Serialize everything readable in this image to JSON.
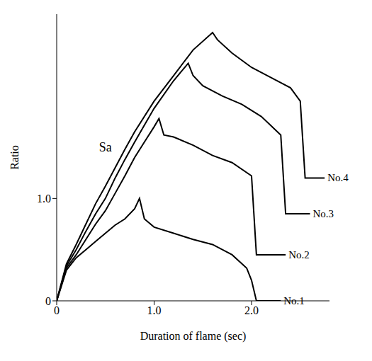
{
  "chart_data": {
    "type": "line",
    "xlabel": "Duration of flame (sec)",
    "ylabel": "Ratio",
    "xlim": [
      0,
      2.8
    ],
    "ylim": [
      0,
      2.8
    ],
    "xticks": [
      0,
      {
        "value": 1,
        "label": "1.0"
      },
      {
        "value": 2,
        "label": "2.0"
      }
    ],
    "yticks": [
      0,
      {
        "value": 1,
        "label": "1.0"
      }
    ],
    "grid": false,
    "annotations": [
      {
        "text": "Sa",
        "x": 0.5,
        "y": 1.5
      }
    ],
    "series": [
      {
        "name": "No.1",
        "color": "#000000",
        "x": [
          0,
          0.1,
          0.2,
          0.3,
          0.4,
          0.5,
          0.6,
          0.7,
          0.8,
          0.85,
          0.9,
          1.0,
          1.2,
          1.4,
          1.6,
          1.8,
          1.95,
          2.0,
          2.05,
          2.3
        ],
        "values": [
          0,
          0.3,
          0.42,
          0.5,
          0.58,
          0.66,
          0.74,
          0.8,
          0.9,
          1.0,
          0.8,
          0.72,
          0.66,
          0.6,
          0.55,
          0.45,
          0.32,
          0.2,
          0.0,
          0.0
        ]
      },
      {
        "name": "No.2",
        "color": "#000000",
        "x": [
          0,
          0.1,
          0.2,
          0.3,
          0.4,
          0.5,
          0.6,
          0.7,
          0.8,
          0.9,
          1.0,
          1.05,
          1.1,
          1.2,
          1.4,
          1.6,
          1.8,
          2.0,
          2.05,
          2.35
        ],
        "values": [
          0,
          0.32,
          0.45,
          0.6,
          0.75,
          0.88,
          1.05,
          1.22,
          1.4,
          1.55,
          1.7,
          1.78,
          1.62,
          1.6,
          1.52,
          1.42,
          1.35,
          1.22,
          0.45,
          0.45
        ]
      },
      {
        "name": "No.3",
        "color": "#000000",
        "x": [
          0,
          0.1,
          0.2,
          0.3,
          0.4,
          0.5,
          0.6,
          0.7,
          0.8,
          1.0,
          1.2,
          1.35,
          1.4,
          1.5,
          1.7,
          1.9,
          2.1,
          2.3,
          2.35,
          2.6
        ],
        "values": [
          0,
          0.34,
          0.5,
          0.68,
          0.85,
          1.0,
          1.2,
          1.38,
          1.55,
          1.88,
          2.15,
          2.32,
          2.2,
          2.1,
          2.0,
          1.92,
          1.8,
          1.62,
          0.85,
          0.85
        ]
      },
      {
        "name": "No.4",
        "color": "#000000",
        "x": [
          0,
          0.1,
          0.2,
          0.3,
          0.4,
          0.5,
          0.6,
          0.7,
          0.8,
          1.0,
          1.2,
          1.4,
          1.6,
          1.65,
          1.8,
          2.0,
          2.2,
          2.4,
          2.5,
          2.55,
          2.75
        ],
        "values": [
          0,
          0.36,
          0.55,
          0.75,
          0.95,
          1.12,
          1.3,
          1.48,
          1.65,
          1.95,
          2.2,
          2.45,
          2.62,
          2.55,
          2.42,
          2.28,
          2.18,
          2.08,
          1.95,
          1.2,
          1.2
        ]
      }
    ]
  }
}
